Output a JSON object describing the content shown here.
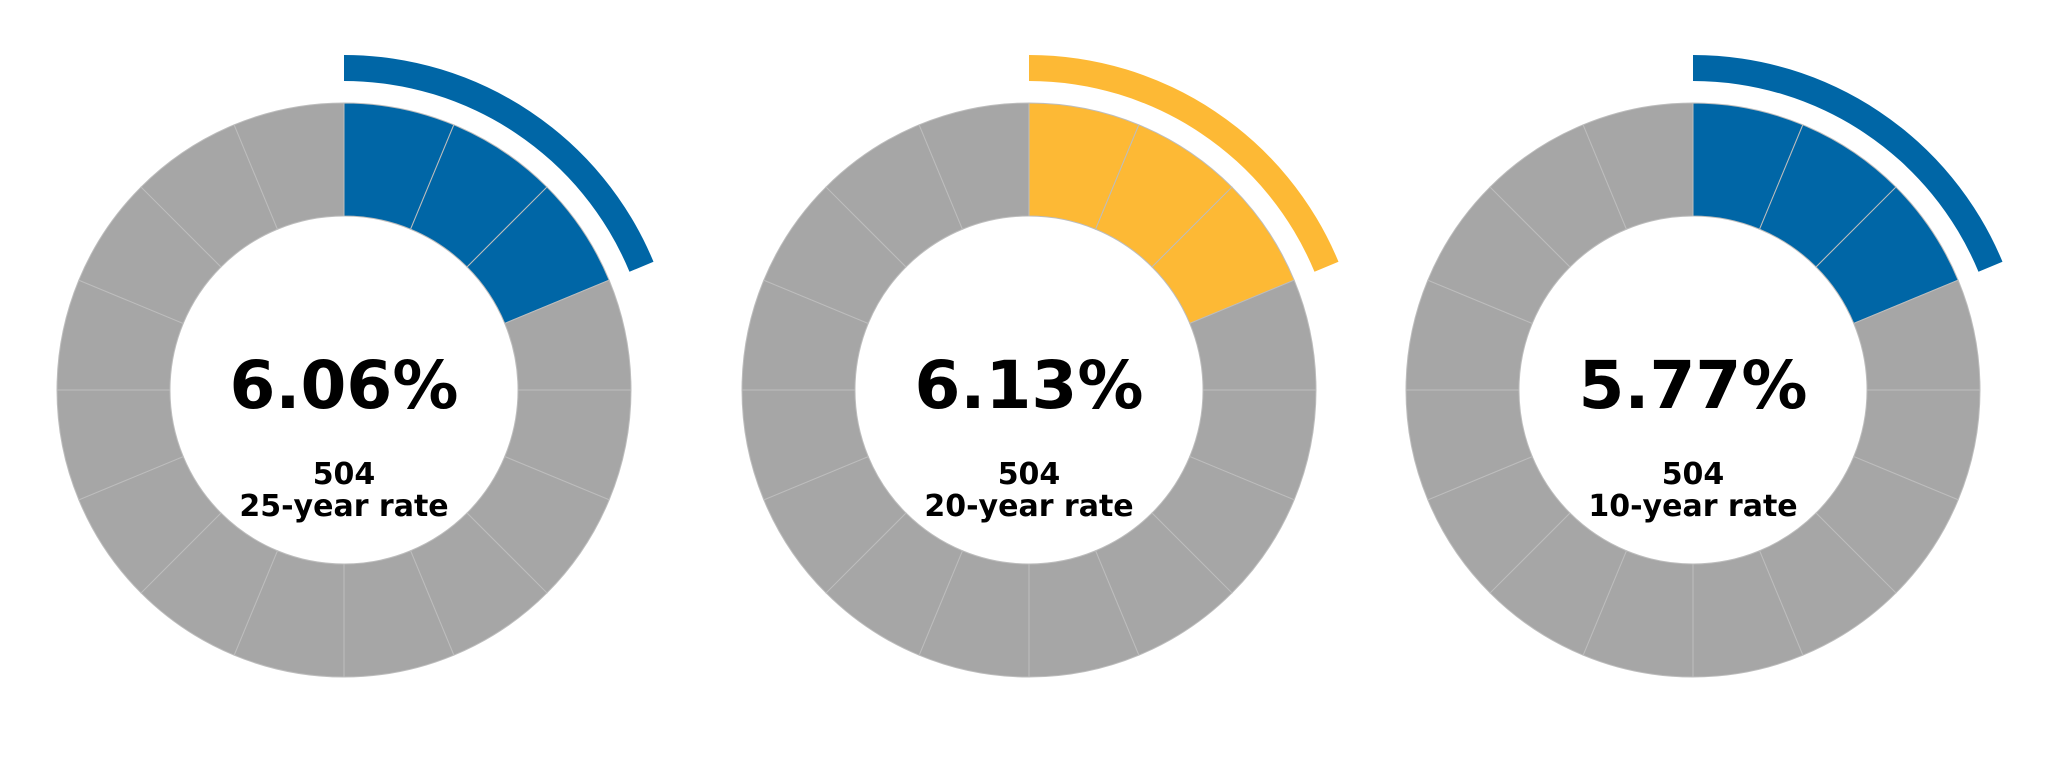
{
  "chart_data": [
    {
      "type": "gauge",
      "value_label": "6.06%",
      "program": "504",
      "term_label": "25-year rate",
      "filled_segments": 3,
      "total_segments": 16,
      "arc_fraction": 0.1875,
      "fill_color": "#0066a6",
      "empty_color": "#a6a6a6"
    },
    {
      "type": "gauge",
      "value_label": "6.13%",
      "program": "504",
      "term_label": "20-year rate",
      "filled_segments": 3,
      "total_segments": 16,
      "arc_fraction": 0.1875,
      "fill_color": "#fdb935",
      "empty_color": "#a6a6a6"
    },
    {
      "type": "gauge",
      "value_label": "5.77%",
      "program": "504",
      "term_label": "10-year rate",
      "filled_segments": 3,
      "total_segments": 16,
      "arc_fraction": 0.1875,
      "fill_color": "#0066a6",
      "empty_color": "#a6a6a6"
    }
  ]
}
